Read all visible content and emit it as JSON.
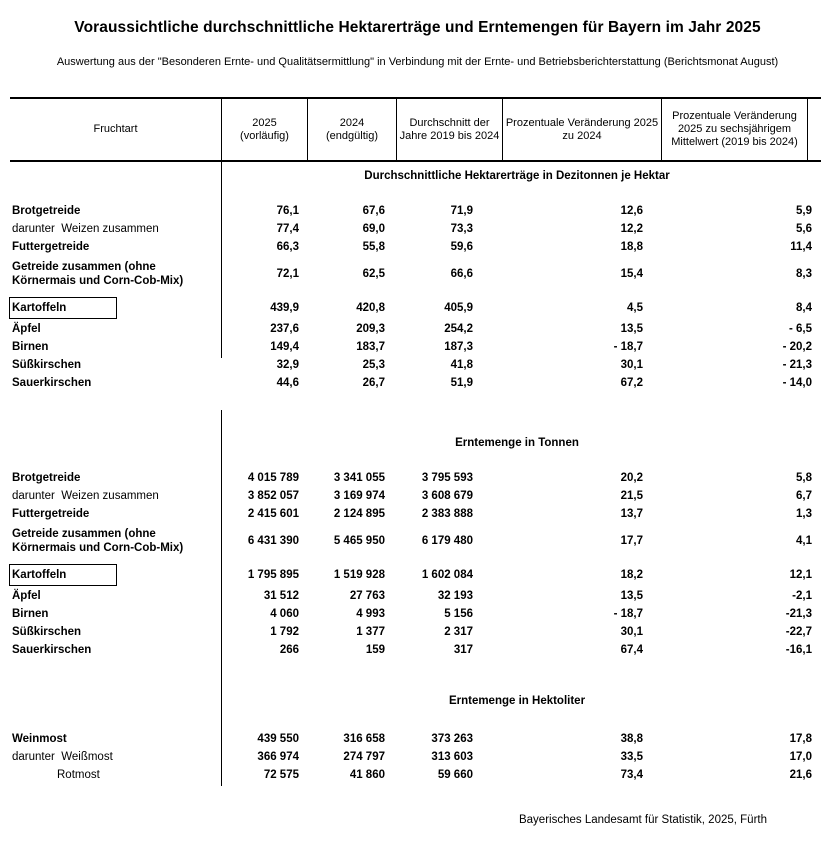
{
  "page": {
    "title": "Voraussichtliche durchschnittliche Hektarerträge und Erntemengen für Bayern im Jahr 2025",
    "subtitle": "Auswertung aus der \"Besonderen Ernte- und Qualitätsermittlung\" in Verbindung mit der Ernte- und Betriebsberichterstattung (Berichtsmonat August)",
    "source": "Bayerisches Landesamt für Statistik, 2025, Fürth"
  },
  "table": {
    "columns": [
      "Fruchtart",
      "2025\n(vorläufig)",
      "2024\n(endgültig)",
      "Durchschnitt der Jahre 2019 bis 2024",
      "Prozentuale Veränderung 2025 zu 2024",
      "Prozentuale Veränderung 2025 zu sechsjährigem Mittelwert (2019 bis 2024)"
    ],
    "sections": [
      {
        "title": "Durchschnittliche Hektarerträge in Dezitonnen je Hektar",
        "rows": [
          {
            "label": "Brotgetreide",
            "values": [
              "76,1",
              "67,6",
              "71,9",
              "12,6",
              "5,9"
            ]
          },
          {
            "label": "darunter  Weizen zusammen",
            "muted": true,
            "values": [
              "77,4",
              "69,0",
              "73,3",
              "12,2",
              "5,6"
            ]
          },
          {
            "label": "Futtergetreide",
            "values": [
              "66,3",
              "55,8",
              "59,6",
              "18,8",
              "11,4"
            ]
          },
          {
            "label": "Getreide zusammen (ohne\nKörnermais und Corn-Cob-Mix)",
            "values": [
              "72,1",
              "62,5",
              "66,6",
              "15,4",
              "8,3"
            ]
          },
          {
            "label": "Kartoffeln",
            "boxed": true,
            "gap": true,
            "values": [
              "439,9",
              "420,8",
              "405,9",
              "4,5",
              "8,4"
            ]
          },
          {
            "label": "Äpfel",
            "gap": true,
            "values": [
              "237,6",
              "209,3",
              "254,2",
              "13,5",
              "- 6,5"
            ]
          },
          {
            "label": "Birnen",
            "values": [
              "149,4",
              "183,7",
              "187,3",
              "- 18,7",
              "- 20,2"
            ]
          },
          {
            "label": "Süßkirschen",
            "values": [
              "32,9",
              "25,3",
              "41,8",
              "30,1",
              "- 21,3"
            ]
          },
          {
            "label": "Sauerkirschen",
            "values": [
              "44,6",
              "26,7",
              "51,9",
              "67,2",
              "- 14,0"
            ]
          }
        ]
      },
      {
        "title": "Erntemenge in Tonnen",
        "rows": [
          {
            "label": "Brotgetreide",
            "values": [
              "4 015 789",
              "3 341 055",
              "3 795 593",
              "20,2",
              "5,8"
            ]
          },
          {
            "label": "darunter  Weizen zusammen",
            "muted": true,
            "values": [
              "3 852 057",
              "3 169 974",
              "3 608 679",
              "21,5",
              "6,7"
            ]
          },
          {
            "label": "Futtergetreide",
            "values": [
              "2 415 601",
              "2 124 895",
              "2 383 888",
              "13,7",
              "1,3"
            ]
          },
          {
            "label": "Getreide zusammen (ohne\nKörnermais und Corn-Cob-Mix)",
            "values": [
              "6 431 390",
              "5 465 950",
              "6 179 480",
              "17,7",
              "4,1"
            ]
          },
          {
            "label": "Kartoffeln",
            "boxed": true,
            "gap": true,
            "values": [
              "1 795 895",
              "1 519 928",
              "1 602 084",
              "18,2",
              "12,1"
            ]
          },
          {
            "label": "Äpfel",
            "gap": true,
            "values": [
              "31 512",
              "27 763",
              "32 193",
              "13,5",
              "-2,1"
            ]
          },
          {
            "label": "Birnen",
            "values": [
              "4 060",
              "4 993",
              "5 156",
              "- 18,7",
              "-21,3"
            ]
          },
          {
            "label": "Süßkirschen",
            "values": [
              "1 792",
              "1 377",
              "2 317",
              "30,1",
              "-22,7"
            ]
          },
          {
            "label": "Sauerkirschen",
            "values": [
              "266",
              "159",
              "317",
              "67,4",
              "-16,1"
            ]
          }
        ]
      },
      {
        "title": "Erntemenge in Hektoliter",
        "rows": [
          {
            "label": "Weinmost",
            "values": [
              "439 550",
              "316 658",
              "373 263",
              "38,8",
              "17,8"
            ]
          },
          {
            "label": "darunter  Weißmost",
            "muted": true,
            "values": [
              "366 974",
              "274 797",
              "313 603",
              "33,5",
              "17,0"
            ]
          },
          {
            "label": "Rotmost",
            "muted": true,
            "indent": true,
            "values": [
              "72 575",
              "41 860",
              "59 660",
              "73,4",
              "21,6"
            ]
          }
        ]
      }
    ]
  }
}
